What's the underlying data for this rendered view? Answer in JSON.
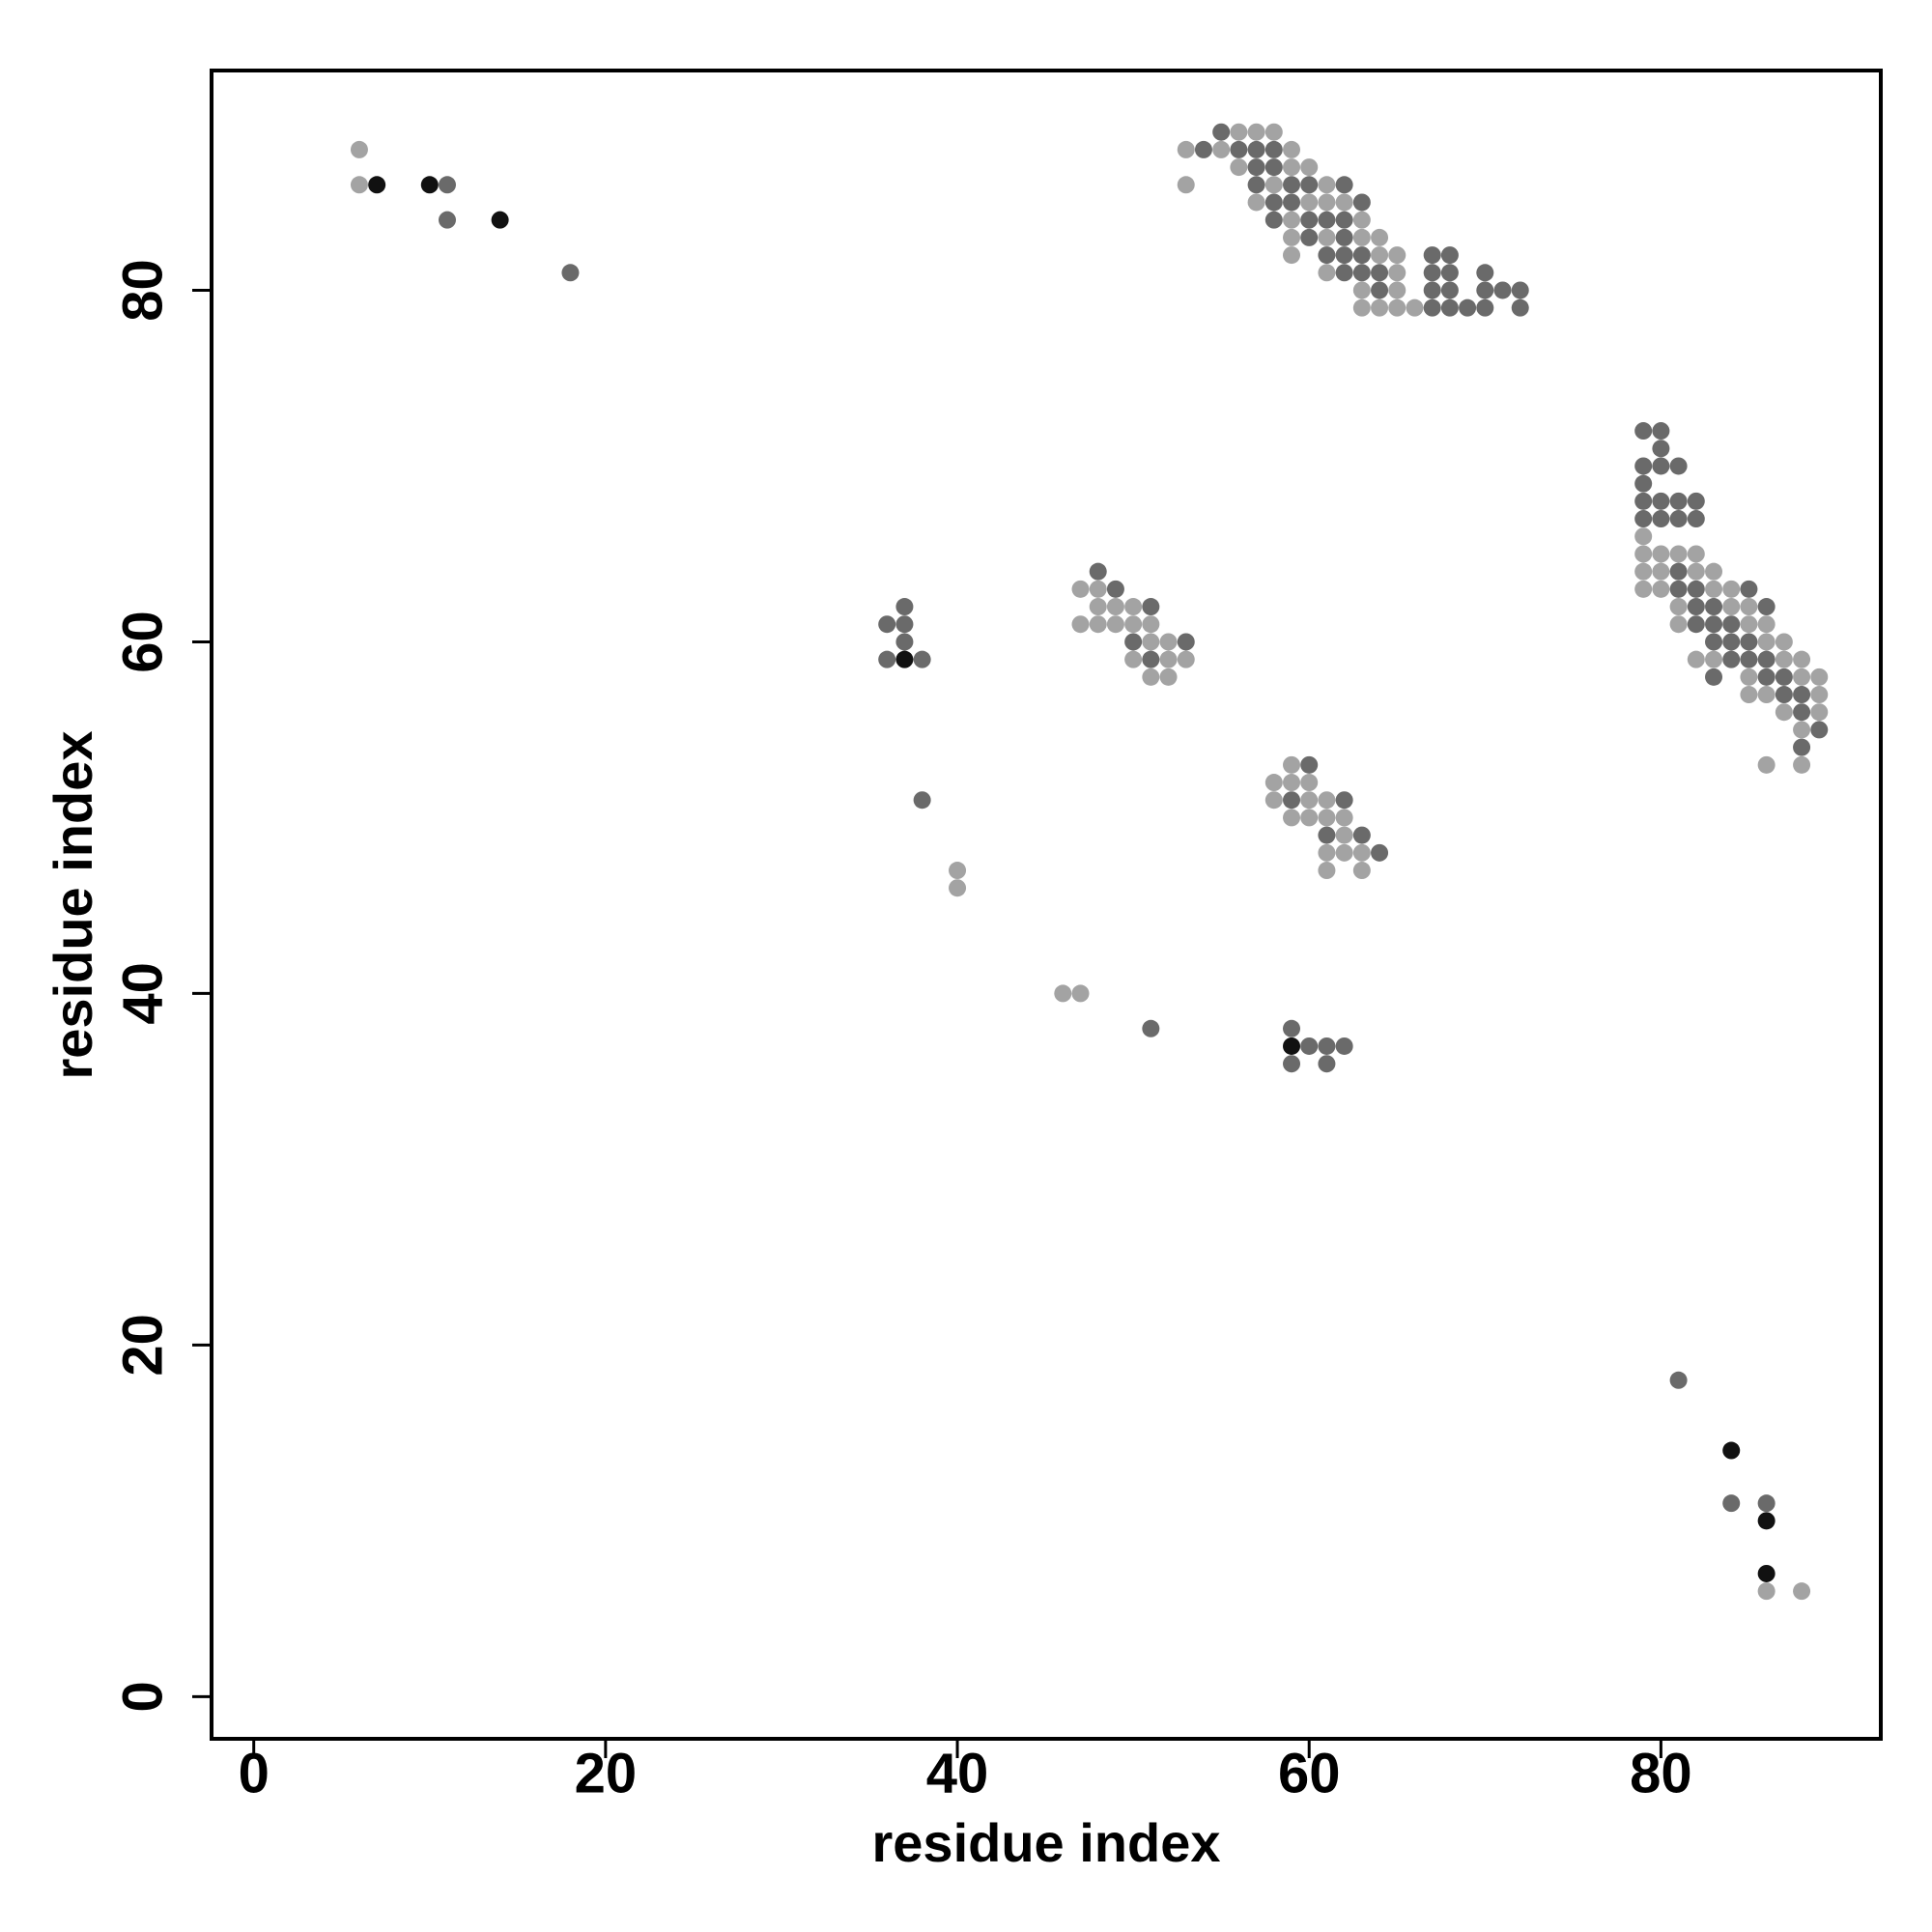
{
  "chart_data": {
    "type": "scatter",
    "x_label": "residue index",
    "y_label": "residue index",
    "xlim": [
      -2.4,
      92.5
    ],
    "ylim": [
      -2.4,
      92.5
    ],
    "xticks": [
      0,
      20,
      40,
      60,
      80
    ],
    "yticks": [
      0,
      20,
      40,
      60,
      80
    ],
    "grid": false,
    "series": [
      {
        "color": "#a3a3a3",
        "x": [
          6,
          6,
          56,
          57,
          58,
          53,
          55,
          59,
          56,
          59,
          60,
          53,
          58,
          61,
          57,
          60,
          61,
          62,
          59,
          63,
          59,
          61,
          63,
          64,
          59,
          64,
          65,
          61,
          65,
          63,
          65,
          63,
          64,
          65,
          66,
          79,
          79,
          80,
          81,
          82,
          79,
          80,
          82,
          83,
          79,
          80,
          83,
          84,
          81,
          84,
          85,
          81,
          85,
          86,
          86,
          87,
          82,
          83,
          87,
          88,
          85,
          88,
          89,
          85,
          86,
          89,
          87,
          89,
          88,
          86,
          88,
          40,
          40,
          47,
          48,
          48,
          49,
          50,
          47,
          48,
          49,
          50,
          51,
          51,
          52,
          50,
          52,
          53,
          51,
          52,
          59,
          58,
          59,
          60,
          58,
          60,
          61,
          59,
          60,
          61,
          62,
          62,
          61,
          62,
          63,
          61,
          63,
          46,
          47,
          86,
          88
        ],
        "y": [
          88,
          86,
          89,
          89,
          89,
          88,
          88,
          88,
          87,
          87,
          87,
          86,
          86,
          86,
          85,
          85,
          85,
          85,
          84,
          84,
          83,
          83,
          83,
          83,
          82,
          82,
          82,
          81,
          81,
          80,
          80,
          79,
          79,
          79,
          79,
          66,
          65,
          65,
          65,
          65,
          64,
          64,
          64,
          64,
          63,
          63,
          63,
          63,
          62,
          62,
          62,
          61,
          61,
          61,
          60,
          60,
          59,
          59,
          59,
          59,
          58,
          58,
          58,
          57,
          57,
          57,
          56,
          56,
          55,
          53,
          53,
          47,
          46,
          63,
          63,
          62,
          62,
          62,
          61,
          61,
          61,
          61,
          61,
          60,
          60,
          59,
          59,
          59,
          58,
          58,
          53,
          52,
          52,
          52,
          51,
          51,
          51,
          50,
          50,
          50,
          50,
          49,
          48,
          48,
          48,
          47,
          47,
          40,
          40,
          6,
          6
        ]
      },
      {
        "color": "#6a6a6a",
        "x": [
          11,
          11,
          18,
          55,
          54,
          56,
          57,
          58,
          57,
          58,
          57,
          59,
          60,
          62,
          58,
          59,
          63,
          58,
          60,
          61,
          62,
          60,
          62,
          61,
          62,
          63,
          67,
          68,
          62,
          63,
          64,
          67,
          68,
          70,
          64,
          67,
          68,
          70,
          71,
          72,
          67,
          68,
          69,
          70,
          72,
          79,
          80,
          80,
          79,
          80,
          81,
          79,
          79,
          80,
          81,
          82,
          79,
          80,
          81,
          82,
          81,
          81,
          82,
          85,
          82,
          83,
          86,
          82,
          83,
          84,
          83,
          84,
          85,
          84,
          85,
          86,
          83,
          86,
          87,
          87,
          88,
          88,
          89,
          88,
          37,
          36,
          37,
          37,
          36,
          38,
          38,
          48,
          49,
          51,
          50,
          53,
          51,
          60,
          59,
          62,
          61,
          63,
          64,
          51,
          59,
          60,
          61,
          62,
          59,
          61,
          81,
          84,
          86
        ],
        "y": [
          86,
          84,
          81,
          89,
          88,
          88,
          88,
          88,
          87,
          87,
          86,
          86,
          86,
          86,
          85,
          85,
          85,
          84,
          84,
          84,
          84,
          83,
          83,
          82,
          82,
          82,
          82,
          82,
          81,
          81,
          81,
          81,
          81,
          81,
          80,
          80,
          80,
          80,
          80,
          80,
          79,
          79,
          79,
          79,
          79,
          72,
          72,
          71,
          70,
          70,
          70,
          69,
          68,
          68,
          68,
          68,
          67,
          67,
          67,
          67,
          64,
          63,
          63,
          63,
          62,
          62,
          62,
          61,
          61,
          61,
          60,
          60,
          60,
          59,
          59,
          59,
          58,
          58,
          58,
          57,
          57,
          56,
          55,
          54,
          62,
          61,
          61,
          60,
          59,
          59,
          51,
          64,
          63,
          62,
          60,
          60,
          59,
          53,
          51,
          51,
          49,
          49,
          48,
          38,
          38,
          37,
          37,
          37,
          36,
          36,
          18,
          11,
          11
        ]
      },
      {
        "color": "#111111",
        "x": [
          7,
          10,
          14,
          37,
          59,
          84,
          86,
          86
        ],
        "y": [
          86,
          86,
          84,
          59,
          37,
          14,
          10,
          7
        ]
      }
    ]
  }
}
